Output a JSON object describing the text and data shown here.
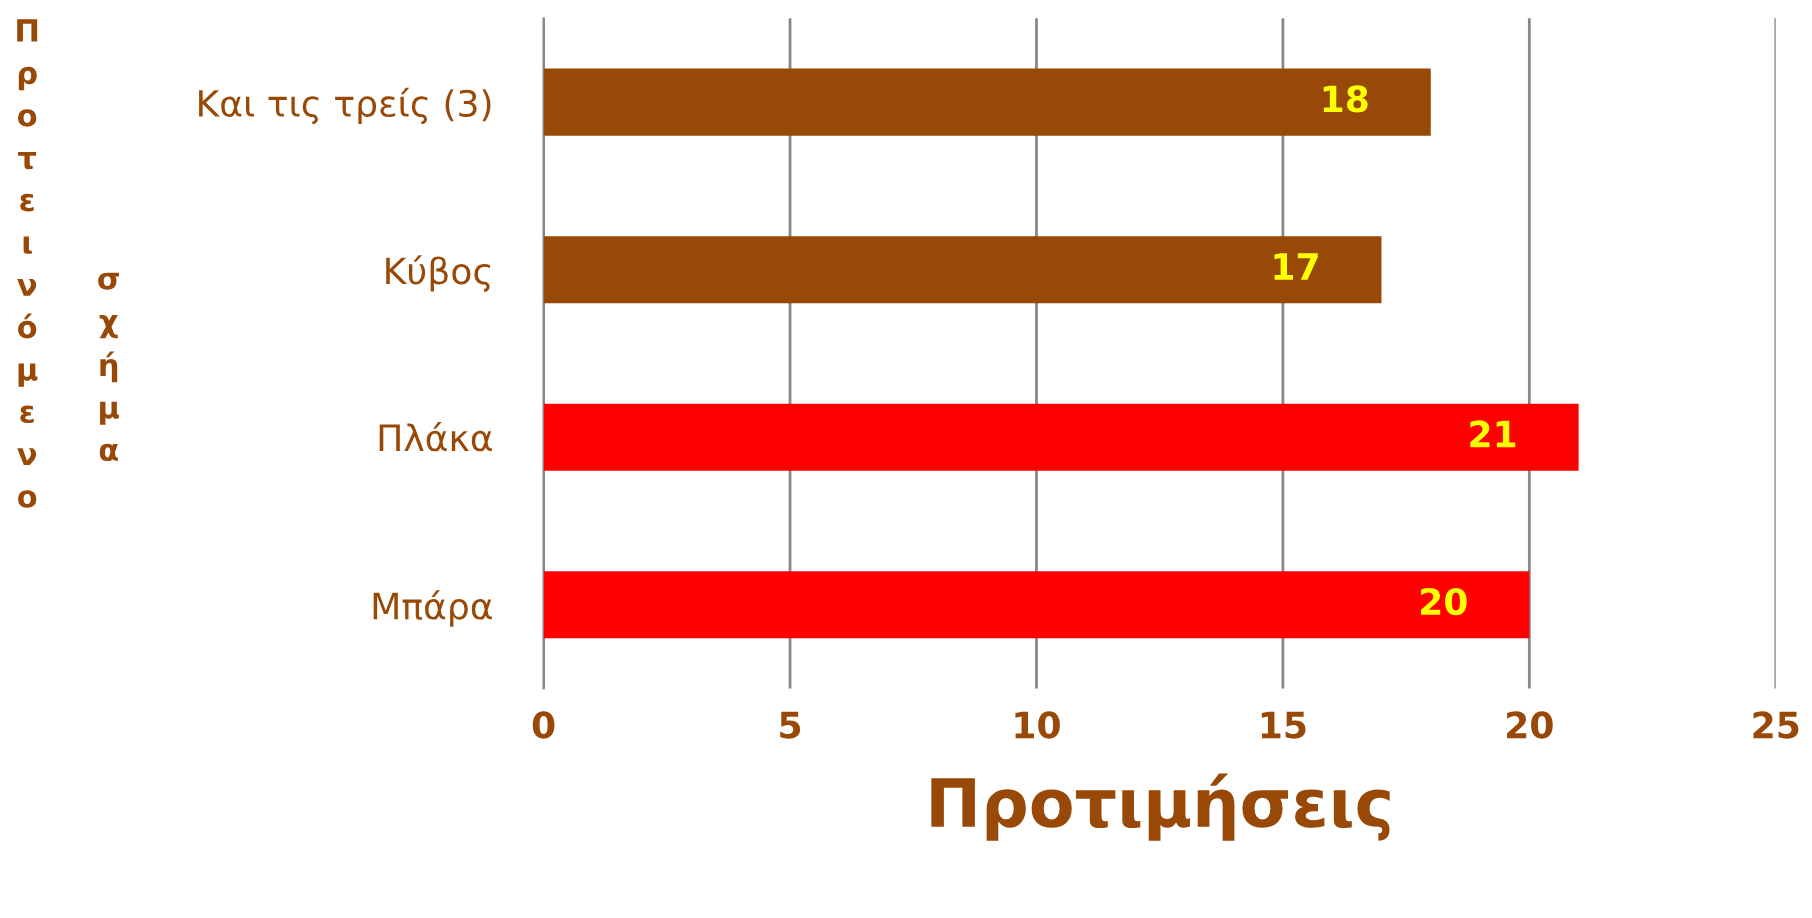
{
  "chart_data": {
    "type": "bar",
    "orientation": "horizontal",
    "categories": [
      "Και τις τρείς (3)",
      "Κύβος",
      "Πλάκα",
      "Μπάρα"
    ],
    "values": [
      18,
      17,
      21,
      20
    ],
    "colors": [
      "#984807",
      "#984807",
      "#ff0000",
      "#ff0000"
    ],
    "xlim": [
      0,
      25
    ],
    "xticks": [
      0,
      5,
      10,
      15,
      20,
      25
    ],
    "xlabel": "Προτιμήσεις",
    "ylabel": "Προτεινόμενο σχήμα",
    "grid": "x",
    "data_labels": true,
    "legend": false
  }
}
